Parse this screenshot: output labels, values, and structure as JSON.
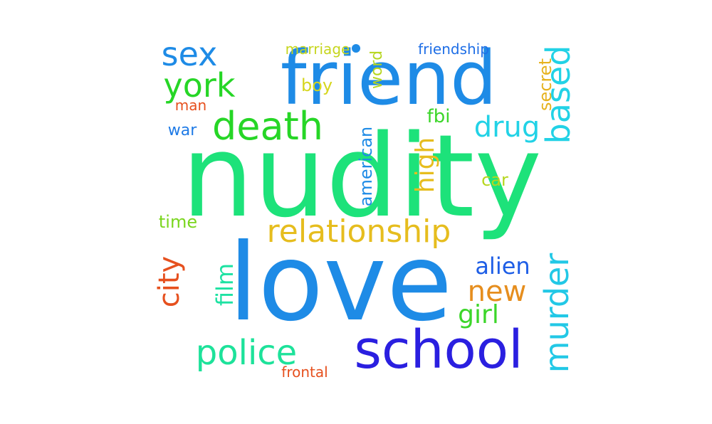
{
  "words": {
    "nudity": {
      "text": "nudity",
      "color": "#1de27a"
    },
    "love": {
      "text": "love",
      "color": "#1e8be6"
    },
    "friend": {
      "text": "friend",
      "color": "#1e8be6"
    },
    "school": {
      "text": "school",
      "color": "#2a1fe0"
    },
    "relationship": {
      "text": "relationship",
      "color": "#e6bd1e"
    },
    "death": {
      "text": "death",
      "color": "#26d626"
    },
    "police": {
      "text": "police",
      "color": "#1de29a"
    },
    "murder": {
      "text": "murder",
      "color": "#22c8e6"
    },
    "based": {
      "text": "based",
      "color": "#22d2e6"
    },
    "york": {
      "text": "york",
      "color": "#26d626"
    },
    "sex": {
      "text": "sex",
      "color": "#1e8be6"
    },
    "new": {
      "text": "new",
      "color": "#e68e1e"
    },
    "drug": {
      "text": "drug",
      "color": "#22d2e6"
    },
    "city": {
      "text": "city",
      "color": "#e6501e"
    },
    "high": {
      "text": "high",
      "color": "#e6bd1e"
    },
    "girl": {
      "text": "girl",
      "color": "#3cd62a"
    },
    "alien": {
      "text": "alien",
      "color": "#1e5ee6"
    },
    "film": {
      "text": "film",
      "color": "#1de2a2"
    },
    "american": {
      "text": "american",
      "color": "#1e8be6"
    },
    "secret": {
      "text": "secret",
      "color": "#e6b21e"
    },
    "word": {
      "text": "word",
      "color": "#b6d61e"
    },
    "fbi": {
      "text": "fbi",
      "color": "#3cd62a"
    },
    "boy": {
      "text": "boy",
      "color": "#d6d61e"
    },
    "car": {
      "text": "car",
      "color": "#b6d61e"
    },
    "time": {
      "text": "time",
      "color": "#7ad61e"
    },
    "war": {
      "text": "war",
      "color": "#1e7ae6"
    },
    "man": {
      "text": "man",
      "color": "#e6501e"
    },
    "marriage": {
      "text": "marriage",
      "color": "#c6d61e"
    },
    "friendship": {
      "text": "friendship",
      "color": "#1e6ee6"
    },
    "frontal": {
      "text": "frontal",
      "color": "#e6501e"
    }
  }
}
